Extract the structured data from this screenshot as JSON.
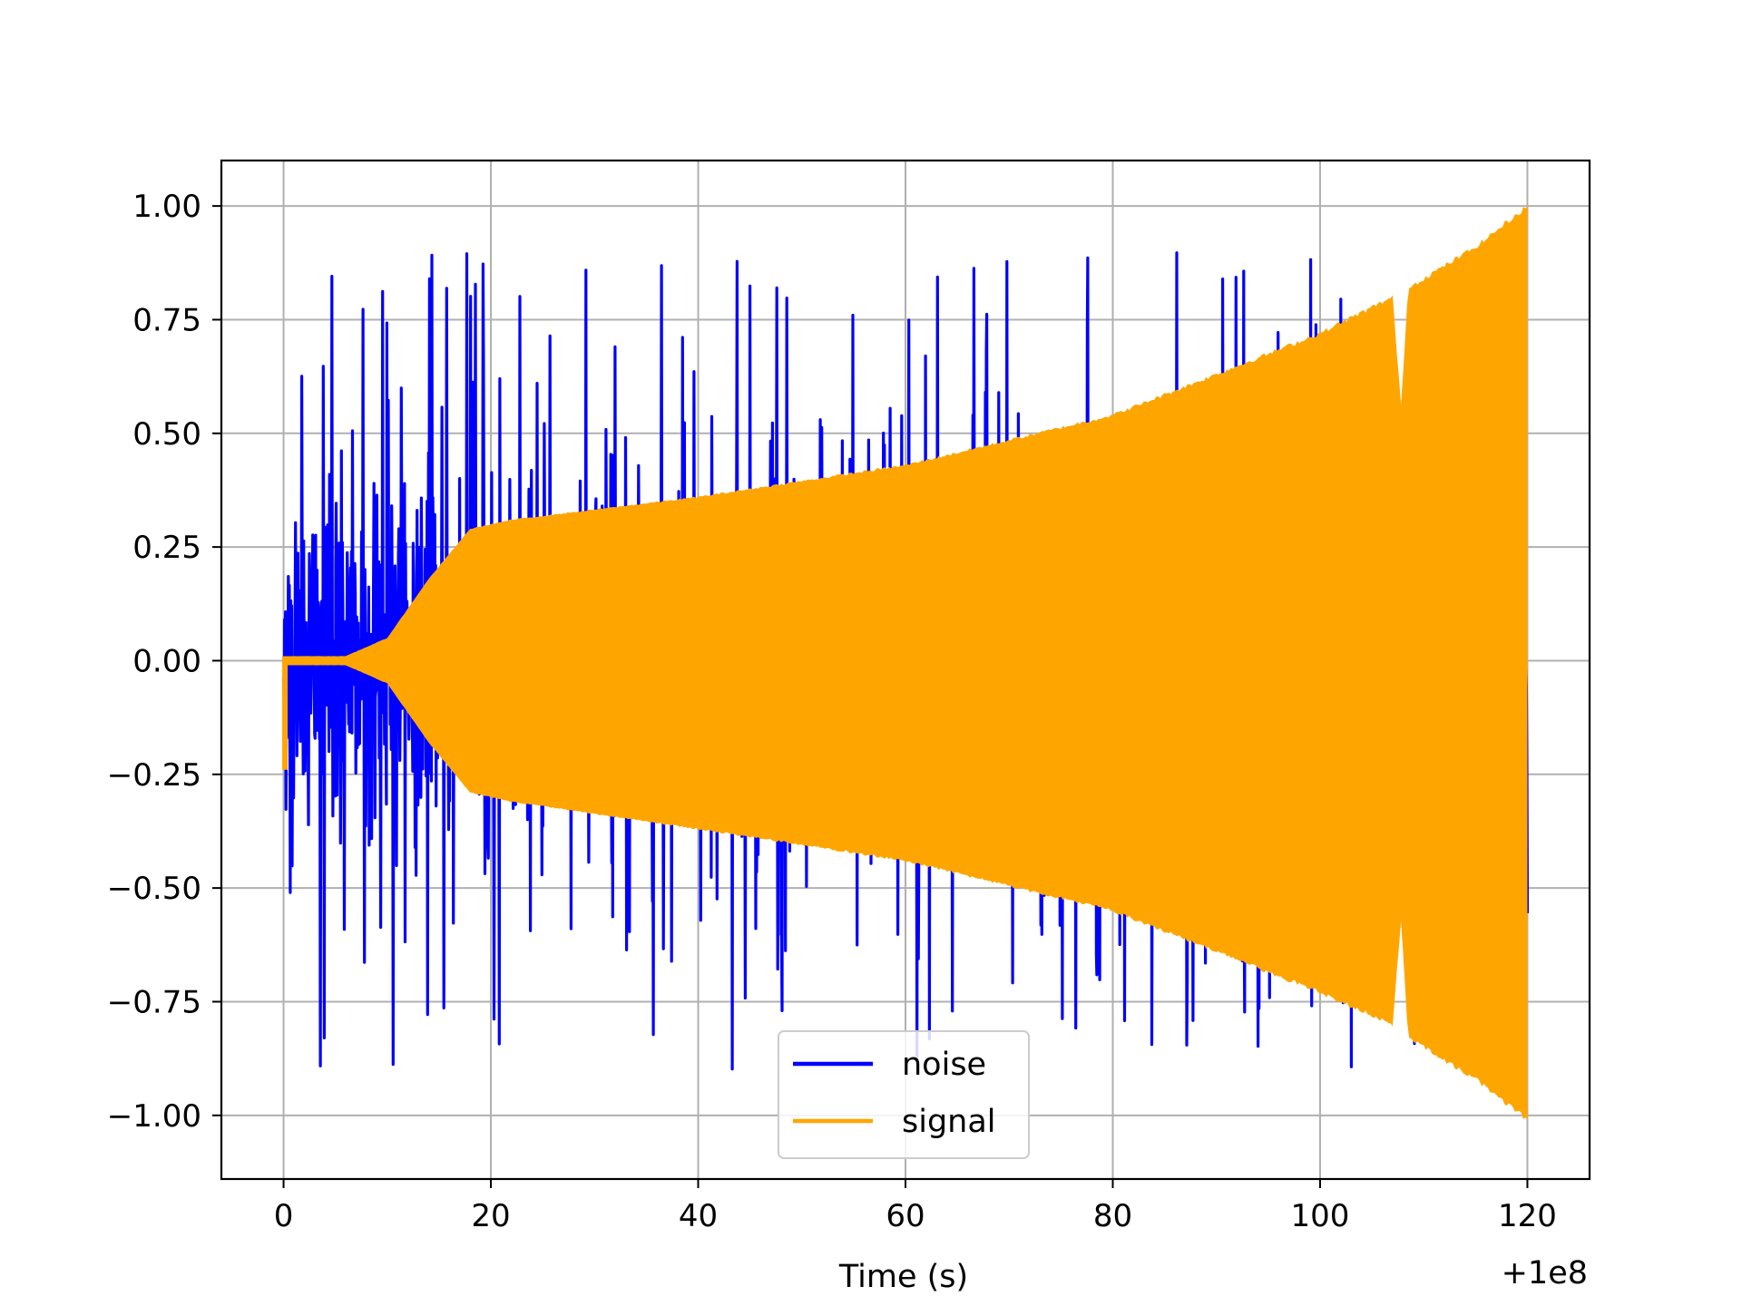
{
  "chart_data": {
    "type": "line",
    "xlabel": "Time (s)",
    "ylabel": "",
    "x_offset_label": "+1e8",
    "xlim": [
      -6,
      126
    ],
    "ylim": [
      -1.14,
      1.1
    ],
    "xticks": [
      0,
      20,
      40,
      60,
      80,
      100,
      120
    ],
    "yticks": [
      1.0,
      0.75,
      0.5,
      0.25,
      0.0,
      -0.25,
      -0.5,
      -0.75,
      -1.0
    ],
    "ytick_labels": [
      "1.00",
      "0.75",
      "0.50",
      "0.25",
      "0.00",
      "−0.25",
      "−0.50",
      "−0.75",
      "−1.00"
    ],
    "grid": true,
    "legend": {
      "position": "lower-center"
    },
    "series": [
      {
        "name": "noise",
        "color": "#0000ff",
        "style": "random-noise",
        "max_amplitude": 1.0,
        "min_amplitude": -1.04,
        "x": [
          0,
          120
        ]
      },
      {
        "name": "signal",
        "color": "#ffa500",
        "style": "chirp-envelope",
        "x": [
          0,
          120
        ],
        "envelope": {
          "t": [
            0,
            6,
            10,
            14,
            18,
            22,
            40,
            60,
            80,
            100,
            107,
            107.8,
            108.5,
            115,
            120
          ],
          "upper": [
            0.01,
            0.01,
            0.05,
            0.18,
            0.29,
            0.31,
            0.36,
            0.43,
            0.54,
            0.72,
            0.8,
            0.56,
            0.82,
            0.91,
            1.0
          ],
          "lower": [
            -0.01,
            -0.01,
            -0.05,
            -0.18,
            -0.29,
            -0.31,
            -0.37,
            -0.44,
            -0.55,
            -0.73,
            -0.8,
            -0.57,
            -0.83,
            -0.92,
            -1.01
          ]
        },
        "start_dip": -0.24
      }
    ]
  }
}
